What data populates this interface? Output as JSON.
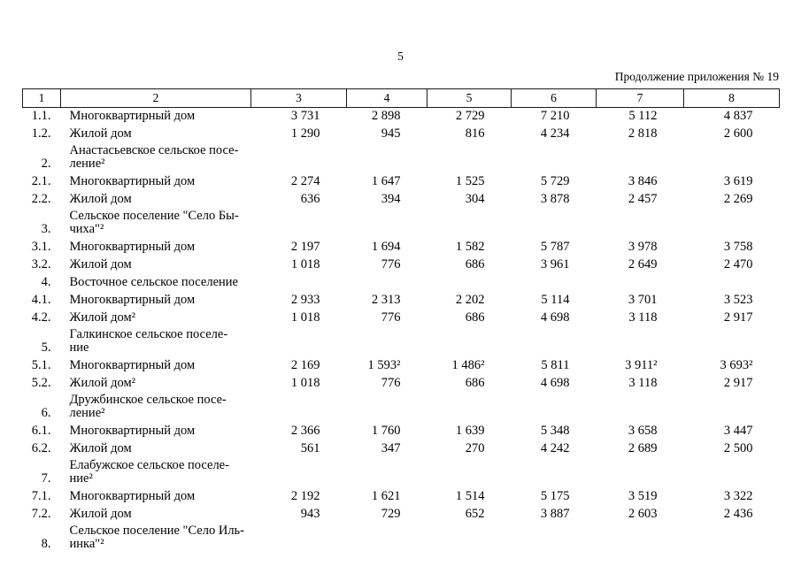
{
  "page": {
    "page_number": "5",
    "continuation_note": "Продолжение приложения № 19"
  },
  "colors": {
    "text": "#000000",
    "border": "#1a1a1a",
    "background": "#ffffff"
  },
  "table": {
    "header_cols": [
      "1",
      "2",
      "3",
      "4",
      "5",
      "6",
      "7",
      "8"
    ],
    "rows": [
      {
        "num": "1.1.",
        "name_lines": [
          "Многоквартирный дом"
        ],
        "values": [
          "3 731",
          "2 898",
          "2 729",
          "7 210",
          "5 112",
          "4 837"
        ]
      },
      {
        "num": "1.2.",
        "name_lines": [
          "Жилой дом"
        ],
        "values": [
          "1 290",
          "945",
          "816",
          "4 234",
          "2 818",
          "2 600"
        ]
      },
      {
        "num": "2.",
        "name_lines": [
          "Анастасьевское сельское посе-",
          "ление²"
        ],
        "values": [
          "",
          "",
          "",
          "",
          "",
          ""
        ]
      },
      {
        "num": "2.1.",
        "name_lines": [
          "Многоквартирный дом"
        ],
        "values": [
          "2 274",
          "1 647",
          "1 525",
          "5 729",
          "3 846",
          "3 619"
        ]
      },
      {
        "num": "2.2.",
        "name_lines": [
          "Жилой дом"
        ],
        "values": [
          "636",
          "394",
          "304",
          "3 878",
          "2 457",
          "2 269"
        ]
      },
      {
        "num": "3.",
        "name_lines": [
          "Сельское поселение \"Село Бы-",
          "чиха\"²"
        ],
        "values": [
          "",
          "",
          "",
          "",
          "",
          ""
        ]
      },
      {
        "num": "3.1.",
        "name_lines": [
          "Многоквартирный дом"
        ],
        "values": [
          "2 197",
          "1 694",
          "1 582",
          "5 787",
          "3 978",
          "3 758"
        ]
      },
      {
        "num": "3.2.",
        "name_lines": [
          "Жилой дом"
        ],
        "values": [
          "1 018",
          "776",
          "686",
          "3 961",
          "2 649",
          "2 470"
        ]
      },
      {
        "num": "4.",
        "name_lines": [
          "Восточное сельское поселение"
        ],
        "values": [
          "",
          "",
          "",
          "",
          "",
          ""
        ]
      },
      {
        "num": "4.1.",
        "name_lines": [
          "Многоквартирный дом"
        ],
        "values": [
          "2 933",
          "2 313",
          "2 202",
          "5 114",
          "3 701",
          "3 523"
        ]
      },
      {
        "num": "4.2.",
        "name_lines": [
          "Жилой дом²"
        ],
        "values": [
          "1 018",
          "776",
          "686",
          "4 698",
          "3 118",
          "2 917"
        ]
      },
      {
        "num": "5.",
        "name_lines": [
          "Галкинское сельское поселе-",
          "ние"
        ],
        "values": [
          "",
          "",
          "",
          "",
          "",
          ""
        ]
      },
      {
        "num": "5.1.",
        "name_lines": [
          "Многоквартирный дом"
        ],
        "values": [
          "2 169",
          "1 593²",
          "1 486²",
          "5 811",
          "3 911²",
          "3 693²"
        ]
      },
      {
        "num": "5.2.",
        "name_lines": [
          "Жилой дом²"
        ],
        "values": [
          "1 018",
          "776",
          "686",
          "4 698",
          "3 118",
          "2 917"
        ]
      },
      {
        "num": "6.",
        "name_lines": [
          "Дружбинское сельское посе-",
          "ление²"
        ],
        "values": [
          "",
          "",
          "",
          "",
          "",
          ""
        ]
      },
      {
        "num": "6.1.",
        "name_lines": [
          "Многоквартирный дом"
        ],
        "values": [
          "2 366",
          "1 760",
          "1 639",
          "5 348",
          "3 658",
          "3 447"
        ]
      },
      {
        "num": "6.2.",
        "name_lines": [
          "Жилой дом"
        ],
        "values": [
          "561",
          "347",
          "270",
          "4 242",
          "2 689",
          "2 500"
        ]
      },
      {
        "num": "7.",
        "name_lines": [
          "Елабужское сельское поселе-",
          "ние²"
        ],
        "values": [
          "",
          "",
          "",
          "",
          "",
          ""
        ]
      },
      {
        "num": "7.1.",
        "name_lines": [
          "Многоквартирный дом"
        ],
        "values": [
          "2 192",
          "1 621",
          "1 514",
          "5 175",
          "3 519",
          "3 322"
        ]
      },
      {
        "num": "7.2.",
        "name_lines": [
          "Жилой дом"
        ],
        "values": [
          "943",
          "729",
          "652",
          "3 887",
          "2 603",
          "2 436"
        ]
      },
      {
        "num": "8.",
        "name_lines": [
          "Сельское поселение \"Село Иль-",
          "инка\"²"
        ],
        "values": [
          "",
          "",
          "",
          "",
          "",
          ""
        ]
      }
    ]
  }
}
